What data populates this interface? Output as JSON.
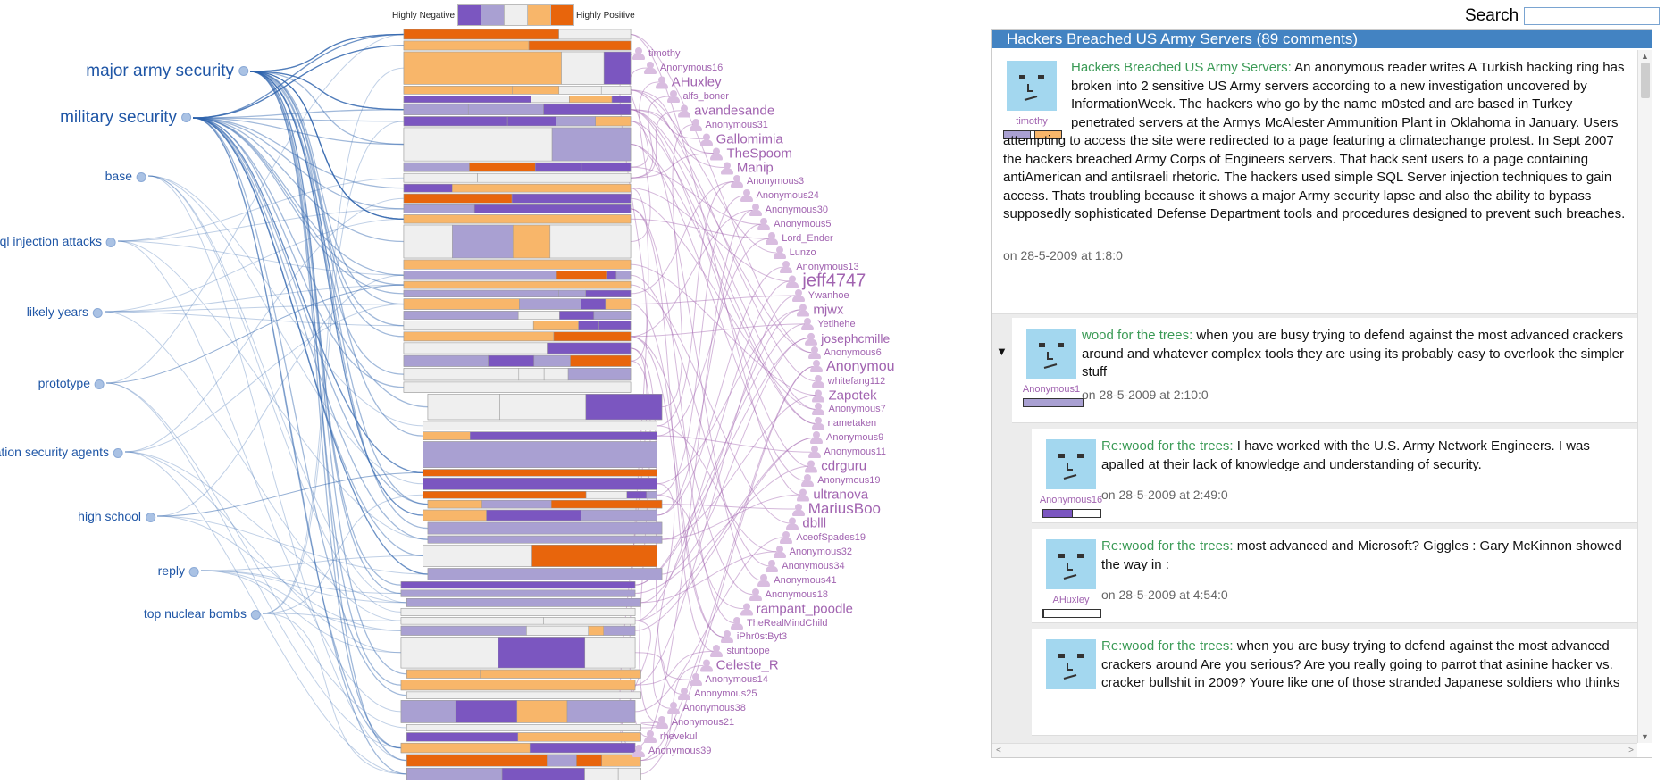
{
  "legend": {
    "left_label": "Highly Negative",
    "right_label": "Highly Positive",
    "colors": [
      "#7b56c0",
      "#a9a0d2",
      "#efefef",
      "#f8b66a",
      "#e8650c"
    ]
  },
  "keywords": [
    {
      "label": "major army security"
    },
    {
      "label": "military security"
    },
    {
      "label": "base"
    },
    {
      "label": "sql injection attacks"
    },
    {
      "label": "likely years"
    },
    {
      "label": "prototype"
    },
    {
      "label": "ation security agents"
    },
    {
      "label": "high school"
    },
    {
      "label": "reply"
    },
    {
      "label": "top nuclear bombs"
    }
  ],
  "users": [
    "timothy",
    "Anonymous16",
    "AHuxley",
    "alfs_boner",
    "avandesande",
    "Anonymous31",
    "Gallomimia",
    "TheSpoom",
    "Manip",
    "Anonymous3",
    "Anonymous24",
    "Anonymous30",
    "Anonymous5",
    "Lord_Ender",
    "Lunzo",
    "Anonymous13",
    "jeff4747",
    "Ywanhoe",
    "mjwx",
    "Yetihehe",
    "josephcmille",
    "Anonymous6",
    "Anonymou",
    "whitefang112",
    "Zapotek",
    "Anonymous7",
    "nametaken",
    "Anonymous9",
    "Anonymous11",
    "cdrguru",
    "Anonymous19",
    "ultranova",
    "MariusBoo",
    "dblll",
    "AceofSpades19",
    "Anonymous32",
    "Anonymous34",
    "Anonymous41",
    "Anonymous18",
    "rampant_poodle",
    "TheRealMindChild",
    "iPhr0stByt3",
    "stuntpope",
    "Celeste_R",
    "Anonymous14",
    "Anonymous25",
    "Anonymous38",
    "Anonymous21",
    "rhevekul",
    "Anonymous39"
  ],
  "search": {
    "label": "Search",
    "value": ""
  },
  "panel": {
    "title": "Hackers Breached US Army Servers (89 comments)"
  },
  "comments": [
    {
      "author": "timothy",
      "title": "Hackers Breached US Army Servers:",
      "text": " An anonymous reader writes A Turkish hacking ring has broken into 2 sensitive US Army servers according to a new investigation uncovered by InformationWeek. The hackers who go by the name m0sted and are based in Turkey penetrated servers at the Armys McAlester Ammunition Plant in Oklahoma in January. Users attempting to access the site were redirected to a page featuring a climatechange protest. In Sept 2007 the hackers breached Army Corps of Engineers servers. That hack sent users to a page containing antiAmerican and antiIsraeli rhetoric. The hackers used simple SQL Server injection techniques to gain access. Thats troubling because it shows a major Army security lapse and also the ability to bypass supposedly sophisticated Defense Department tools and procedures designed to prevent such breaches.",
      "date": "on 28-5-2009 at 1:8:0"
    },
    {
      "author": "Anonymous1",
      "title": "wood for the trees:",
      "text": " when you are busy trying to defend against the most advanced crackers around and whatever complex tools they are using its probably easy to overlook the simpler stuff",
      "date": "on 28-5-2009 at 2:10:0",
      "toggle": "▼"
    },
    {
      "author": "Anonymous16",
      "title": "Re:wood for the trees:",
      "text": " I have worked with the U.S. Army Network Engineers. I was apalled at their lack of knowledge and understanding of security.",
      "date": "on 28-5-2009 at 2:49:0"
    },
    {
      "author": "AHuxley",
      "title": "Re:wood for the trees:",
      "text": " most advanced and Microsoft? Giggles : Gary McKinnon showed the way in :",
      "date": "on 28-5-2009 at 4:54:0"
    },
    {
      "author": "",
      "title": "Re:wood for the trees:",
      "text": " when you are busy trying to defend against the most advanced crackers around Are you serious? Are you really going to parrot that asinine hacker vs. cracker bullshit in 2009? Youre like one of those stranded Japanese soldiers who thinks",
      "date": ""
    }
  ]
}
